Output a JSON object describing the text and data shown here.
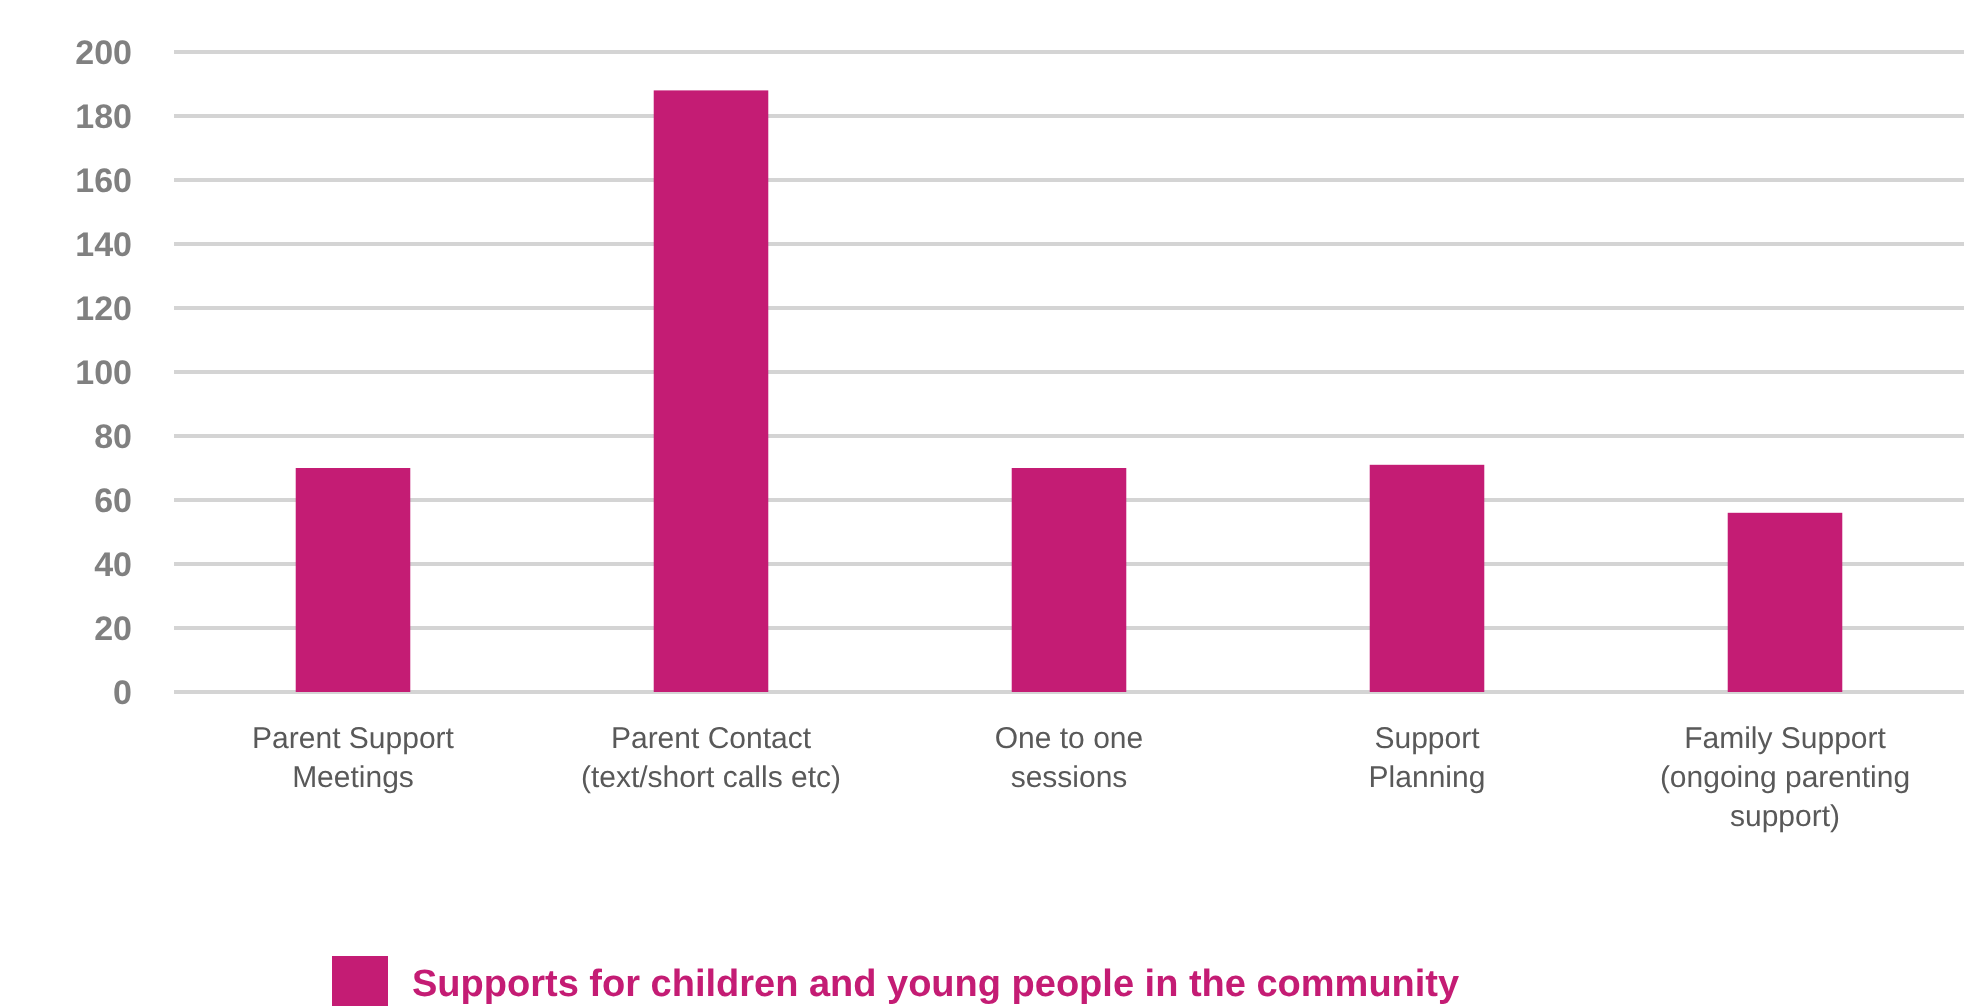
{
  "chart_data": {
    "type": "bar",
    "categories": [
      "Parent Support\nMeetings",
      "Parent Contact\n(text/short calls etc)",
      "One to one\nsessions",
      "Support\nPlanning",
      "Family Support\n(ongoing parenting\nsupport)"
    ],
    "series": [
      {
        "name": "Supports for children and young people in the community",
        "color": "#c41c74",
        "values": [
          70,
          188,
          70,
          71,
          56
        ]
      }
    ],
    "ylim": [
      0,
      200
    ],
    "yticks": [
      0,
      20,
      40,
      60,
      80,
      100,
      120,
      140,
      160,
      180,
      200
    ],
    "grid": "y",
    "legend": "bottom"
  }
}
